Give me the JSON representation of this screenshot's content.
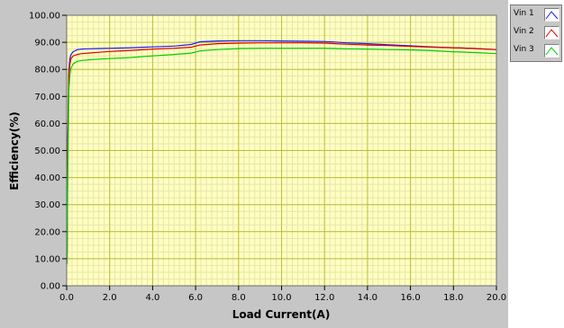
{
  "chart_data": {
    "type": "line",
    "title": "",
    "xlabel": "Load Current(A)",
    "ylabel": "Efficiency(%)",
    "xlim": [
      0,
      20
    ],
    "ylim": [
      0,
      100
    ],
    "grid": true,
    "legend_placement": "outside-top-right",
    "x_ticks": [
      "0.0",
      "2.0",
      "4.0",
      "6.0",
      "8.0",
      "10.0",
      "12.0",
      "14.0",
      "16.0",
      "18.0",
      "20.0"
    ],
    "y_ticks": [
      "0.00",
      "10.00",
      "20.00",
      "30.00",
      "40.00",
      "50.00",
      "60.00",
      "70.00",
      "80.00",
      "90.00",
      "100.00"
    ],
    "series": [
      {
        "name": "Vin 1",
        "color": "#1a1aff",
        "x": [
          0.02,
          0.05,
          0.1,
          0.15,
          0.2,
          0.3,
          0.5,
          0.7,
          1.0,
          1.5,
          2.0,
          3.0,
          4.0,
          5.0,
          5.8,
          6.2,
          7.0,
          8.0,
          9.0,
          10.0,
          11.0,
          12.0,
          12.5,
          13.0,
          14.0,
          15.0,
          16.0,
          17.0,
          18.0,
          19.0,
          20.0
        ],
        "y": [
          10,
          55,
          80,
          84,
          85.5,
          86.5,
          87.3,
          87.5,
          87.6,
          87.7,
          87.8,
          88.0,
          88.3,
          88.6,
          89.2,
          90.2,
          90.5,
          90.6,
          90.6,
          90.5,
          90.4,
          90.3,
          90.1,
          89.8,
          89.5,
          89.1,
          88.7,
          88.3,
          88.0,
          87.7,
          87.3
        ]
      },
      {
        "name": "Vin 2",
        "color": "#e00000",
        "x": [
          0.02,
          0.05,
          0.1,
          0.15,
          0.2,
          0.3,
          0.5,
          0.7,
          1.0,
          1.5,
          2.0,
          3.0,
          4.0,
          5.0,
          5.8,
          6.2,
          7.0,
          8.0,
          9.0,
          10.0,
          11.0,
          12.0,
          12.5,
          13.0,
          14.0,
          15.0,
          16.0,
          17.0,
          18.0,
          19.0,
          20.0
        ],
        "y": [
          12,
          50,
          78,
          82,
          84,
          85,
          85.5,
          85.8,
          86.0,
          86.3,
          86.6,
          87.0,
          87.5,
          87.8,
          88.2,
          89.0,
          89.5,
          89.7,
          89.8,
          89.8,
          89.8,
          89.7,
          89.5,
          89.3,
          89.0,
          88.8,
          88.5,
          88.2,
          88.0,
          87.7,
          87.3
        ]
      },
      {
        "name": "Vin 3",
        "color": "#00cc00",
        "x": [
          0.02,
          0.05,
          0.1,
          0.15,
          0.2,
          0.3,
          0.5,
          0.7,
          1.0,
          1.5,
          2.0,
          3.0,
          4.0,
          5.0,
          5.8,
          6.2,
          7.0,
          8.0,
          9.0,
          10.0,
          11.0,
          12.0,
          12.5,
          13.0,
          14.0,
          15.0,
          16.0,
          17.0,
          18.0,
          19.0,
          20.0
        ],
        "y": [
          8,
          40,
          72,
          78,
          80.5,
          82,
          83,
          83.3,
          83.5,
          83.8,
          84.0,
          84.4,
          85.0,
          85.5,
          86.0,
          86.8,
          87.3,
          87.7,
          87.8,
          87.8,
          87.8,
          87.8,
          87.7,
          87.6,
          87.5,
          87.3,
          87.2,
          86.9,
          86.5,
          86.2,
          85.8
        ]
      }
    ]
  }
}
